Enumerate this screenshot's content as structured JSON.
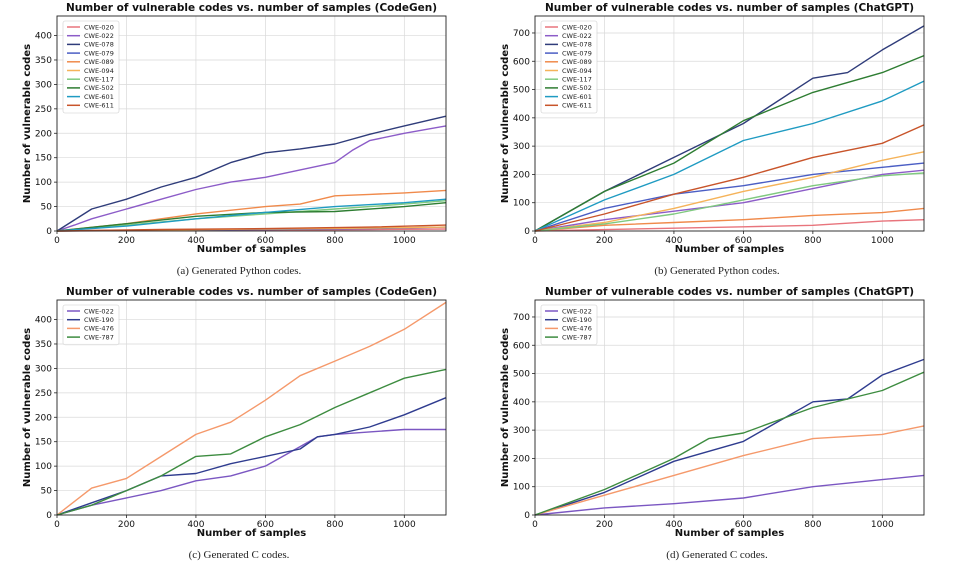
{
  "chart_data": [
    {
      "type": "line",
      "title": "Number of vulnerable codes vs. number of samples (CodeGen)",
      "xlabel": "Number of samples",
      "ylabel": "Number of vulnerable codes",
      "xlim": [
        0,
        1120
      ],
      "ylim": [
        0,
        440
      ],
      "xticks": [
        0,
        200,
        400,
        600,
        800,
        1000
      ],
      "yticks": [
        0,
        50,
        100,
        150,
        200,
        250,
        300,
        350,
        400
      ],
      "grid": true,
      "legend_position": "top-left",
      "caption": "(a) Generated Python codes.",
      "series": [
        {
          "name": "CWE-020",
          "color": "#e8747c",
          "x": [
            0,
            300,
            600,
            900,
            1120
          ],
          "y": [
            0,
            1,
            2,
            3,
            4
          ]
        },
        {
          "name": "CWE-022",
          "color": "#8c5cc8",
          "x": [
            0,
            50,
            100,
            200,
            300,
            400,
            500,
            600,
            700,
            800,
            850,
            900,
            1000,
            1120
          ],
          "y": [
            0,
            12,
            25,
            45,
            65,
            85,
            100,
            110,
            125,
            140,
            165,
            185,
            200,
            215
          ]
        },
        {
          "name": "CWE-078",
          "color": "#2f3c7a",
          "x": [
            0,
            100,
            200,
            300,
            400,
            500,
            600,
            700,
            800,
            900,
            1000,
            1120
          ],
          "y": [
            0,
            45,
            65,
            90,
            110,
            140,
            160,
            168,
            178,
            198,
            215,
            235
          ]
        },
        {
          "name": "CWE-079",
          "color": "#4b5ec4",
          "x": [
            0,
            300,
            600,
            900,
            1120
          ],
          "y": [
            0,
            2,
            3,
            5,
            8
          ]
        },
        {
          "name": "CWE-089",
          "color": "#f08a4b",
          "x": [
            0,
            200,
            400,
            600,
            700,
            800,
            900,
            1000,
            1120
          ],
          "y": [
            0,
            15,
            35,
            50,
            55,
            72,
            75,
            78,
            83
          ]
        },
        {
          "name": "CWE-094",
          "color": "#f5b35a",
          "x": [
            0,
            300,
            600,
            900,
            1120
          ],
          "y": [
            0,
            2,
            4,
            6,
            8
          ]
        },
        {
          "name": "CWE-117",
          "color": "#7fc97f",
          "x": [
            0,
            200,
            400,
            600,
            800,
            1000,
            1120
          ],
          "y": [
            0,
            12,
            25,
            35,
            45,
            55,
            62
          ]
        },
        {
          "name": "CWE-502",
          "color": "#2e7d32",
          "x": [
            0,
            200,
            400,
            600,
            800,
            1000,
            1120
          ],
          "y": [
            0,
            15,
            30,
            38,
            40,
            50,
            58
          ]
        },
        {
          "name": "CWE-601",
          "color": "#1f9bc2",
          "x": [
            0,
            200,
            400,
            600,
            800,
            1000,
            1120
          ],
          "y": [
            0,
            10,
            25,
            38,
            50,
            58,
            65
          ]
        },
        {
          "name": "CWE-611",
          "color": "#c8542a",
          "x": [
            0,
            300,
            600,
            900,
            1120
          ],
          "y": [
            0,
            3,
            5,
            8,
            12
          ]
        }
      ]
    },
    {
      "type": "line",
      "title": "Number of vulnerable codes vs. number of samples (ChatGPT)",
      "xlabel": "Number of samples",
      "ylabel": "Number of vulnerable codes",
      "xlim": [
        0,
        1120
      ],
      "ylim": [
        0,
        760
      ],
      "xticks": [
        0,
        200,
        400,
        600,
        800,
        1000
      ],
      "yticks": [
        0,
        100,
        200,
        300,
        400,
        500,
        600,
        700
      ],
      "grid": true,
      "legend_position": "top-left",
      "caption": "(b) Generated Python codes.",
      "series": [
        {
          "name": "CWE-020",
          "color": "#e8747c",
          "x": [
            0,
            200,
            400,
            600,
            800,
            1000,
            1120
          ],
          "y": [
            0,
            5,
            10,
            15,
            20,
            35,
            40
          ]
        },
        {
          "name": "CWE-022",
          "color": "#8c5cc8",
          "x": [
            0,
            200,
            400,
            600,
            800,
            1000,
            1120
          ],
          "y": [
            0,
            40,
            70,
            100,
            150,
            200,
            215
          ]
        },
        {
          "name": "CWE-078",
          "color": "#2f3c7a",
          "x": [
            0,
            200,
            400,
            600,
            800,
            900,
            1000,
            1120
          ],
          "y": [
            0,
            140,
            260,
            380,
            540,
            560,
            640,
            725
          ]
        },
        {
          "name": "CWE-079",
          "color": "#4b5ec4",
          "x": [
            0,
            200,
            400,
            600,
            800,
            1000,
            1120
          ],
          "y": [
            0,
            80,
            130,
            160,
            200,
            225,
            240
          ]
        },
        {
          "name": "CWE-089",
          "color": "#f08a4b",
          "x": [
            0,
            200,
            400,
            600,
            800,
            1000,
            1120
          ],
          "y": [
            0,
            20,
            30,
            40,
            55,
            65,
            80
          ]
        },
        {
          "name": "CWE-094",
          "color": "#f5b35a",
          "x": [
            0,
            200,
            400,
            600,
            800,
            1000,
            1120
          ],
          "y": [
            0,
            30,
            80,
            140,
            190,
            250,
            280
          ]
        },
        {
          "name": "CWE-117",
          "color": "#7fc97f",
          "x": [
            0,
            200,
            400,
            600,
            800,
            1000,
            1120
          ],
          "y": [
            0,
            25,
            60,
            110,
            160,
            195,
            205
          ]
        },
        {
          "name": "CWE-502",
          "color": "#2e7d32",
          "x": [
            0,
            200,
            400,
            600,
            800,
            1000,
            1120
          ],
          "y": [
            0,
            140,
            240,
            390,
            490,
            560,
            620
          ]
        },
        {
          "name": "CWE-601",
          "color": "#1f9bc2",
          "x": [
            0,
            200,
            400,
            600,
            800,
            1000,
            1120
          ],
          "y": [
            0,
            110,
            200,
            320,
            380,
            460,
            530
          ]
        },
        {
          "name": "CWE-611",
          "color": "#c8542a",
          "x": [
            0,
            200,
            400,
            600,
            800,
            1000,
            1120
          ],
          "y": [
            0,
            60,
            130,
            190,
            260,
            310,
            375
          ]
        }
      ]
    },
    {
      "type": "line",
      "title": "Number of vulnerable codes vs. number of samples (CodeGen)",
      "xlabel": "Number of samples",
      "ylabel": "Number of vulnerable codes",
      "xlim": [
        0,
        1120
      ],
      "ylim": [
        0,
        440
      ],
      "xticks": [
        0,
        200,
        400,
        600,
        800,
        1000
      ],
      "yticks": [
        0,
        50,
        100,
        150,
        200,
        250,
        300,
        350,
        400
      ],
      "grid": true,
      "legend_position": "top-left",
      "caption": "(c) Generated C codes.",
      "series": [
        {
          "name": "CWE-022",
          "color": "#7b57c2",
          "x": [
            0,
            100,
            200,
            300,
            400,
            500,
            600,
            700,
            750,
            800,
            900,
            1000,
            1120
          ],
          "y": [
            0,
            20,
            35,
            50,
            70,
            80,
            100,
            140,
            160,
            165,
            170,
            175,
            175
          ]
        },
        {
          "name": "CWE-190",
          "color": "#2f3c8f",
          "x": [
            0,
            100,
            200,
            300,
            400,
            500,
            600,
            700,
            750,
            800,
            900,
            1000,
            1120
          ],
          "y": [
            0,
            25,
            50,
            80,
            85,
            105,
            120,
            135,
            160,
            165,
            180,
            205,
            240
          ]
        },
        {
          "name": "CWE-476",
          "color": "#f5996b",
          "x": [
            0,
            100,
            200,
            300,
            400,
            500,
            600,
            700,
            800,
            900,
            1000,
            1120
          ],
          "y": [
            0,
            55,
            75,
            120,
            165,
            190,
            235,
            285,
            315,
            345,
            380,
            435
          ]
        },
        {
          "name": "CWE-787",
          "color": "#3d8c40",
          "x": [
            0,
            100,
            200,
            300,
            400,
            500,
            600,
            700,
            800,
            900,
            1000,
            1120
          ],
          "y": [
            0,
            20,
            50,
            80,
            120,
            125,
            160,
            185,
            220,
            250,
            280,
            298
          ]
        }
      ]
    },
    {
      "type": "line",
      "title": "Number of vulnerable codes vs. number of samples (ChatGPT)",
      "xlabel": "Number of samples",
      "ylabel": "Number of vulnerable codes",
      "xlim": [
        0,
        1120
      ],
      "ylim": [
        0,
        760
      ],
      "xticks": [
        0,
        200,
        400,
        600,
        800,
        1000
      ],
      "yticks": [
        0,
        100,
        200,
        300,
        400,
        500,
        600,
        700
      ],
      "grid": true,
      "legend_position": "top-left",
      "caption": "(d) Generated C codes.",
      "series": [
        {
          "name": "CWE-022",
          "color": "#7b57c2",
          "x": [
            0,
            200,
            400,
            600,
            800,
            1000,
            1120
          ],
          "y": [
            0,
            25,
            40,
            60,
            100,
            125,
            140
          ]
        },
        {
          "name": "CWE-190",
          "color": "#2f3c8f",
          "x": [
            0,
            200,
            400,
            600,
            700,
            800,
            900,
            1000,
            1120
          ],
          "y": [
            0,
            80,
            190,
            260,
            330,
            400,
            410,
            495,
            550
          ]
        },
        {
          "name": "CWE-476",
          "color": "#f5996b",
          "x": [
            0,
            200,
            400,
            600,
            800,
            1000,
            1120
          ],
          "y": [
            0,
            70,
            140,
            210,
            270,
            285,
            315
          ]
        },
        {
          "name": "CWE-787",
          "color": "#3d8c40",
          "x": [
            0,
            200,
            400,
            500,
            600,
            800,
            1000,
            1120
          ],
          "y": [
            0,
            90,
            200,
            270,
            290,
            380,
            440,
            505
          ]
        }
      ]
    }
  ]
}
